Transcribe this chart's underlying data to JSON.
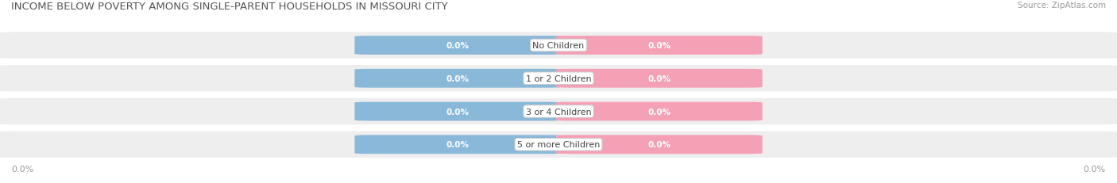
{
  "title": "INCOME BELOW POVERTY AMONG SINGLE-PARENT HOUSEHOLDS IN MISSOURI CITY",
  "source": "Source: ZipAtlas.com",
  "categories": [
    "No Children",
    "1 or 2 Children",
    "3 or 4 Children",
    "5 or more Children"
  ],
  "single_father_values": [
    0.0,
    0.0,
    0.0,
    0.0
  ],
  "single_mother_values": [
    0.0,
    0.0,
    0.0,
    0.0
  ],
  "father_color": "#89b8d8",
  "mother_color": "#f4a0b5",
  "row_bg_color": "#eeeeee",
  "title_color": "#555555",
  "label_text_color": "#444444",
  "x_label": "0.0%",
  "fig_bg_color": "#ffffff"
}
